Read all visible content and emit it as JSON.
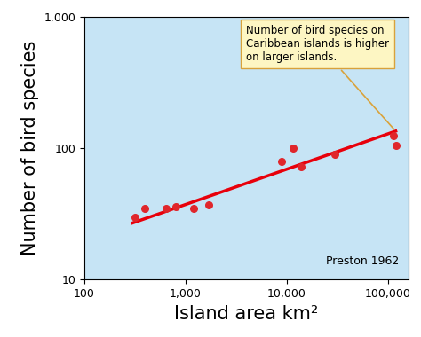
{
  "chart_data": {
    "type": "scatter",
    "x_label": "Island area km²",
    "y_label": "Number of bird species",
    "log": true,
    "grid": false,
    "xlim": [
      100,
      160000
    ],
    "ylim": [
      10,
      1000
    ],
    "xticks": [
      100,
      {
        "value": 1000,
        "label": "1,000"
      },
      {
        "value": 10000,
        "label": "10,000"
      },
      {
        "value": 100000,
        "label": "100,000"
      }
    ],
    "yticks": [
      10,
      100,
      {
        "value": 1000,
        "label": "1,000"
      }
    ],
    "series": [
      {
        "type": "scatter",
        "color": "#e0262b",
        "marker": "o",
        "x": [
          320,
          400,
          650,
          800,
          1200,
          1700,
          9000,
          11500,
          14000,
          30000,
          115000,
          120000
        ],
        "values": [
          30,
          35,
          35,
          36,
          35,
          37,
          80,
          100,
          72,
          90,
          125,
          105
        ]
      },
      {
        "type": "line",
        "color": "#e8000b",
        "line_style": "solid",
        "x": [
          300,
          120000
        ],
        "values": [
          27,
          135
        ]
      }
    ],
    "annotations": [
      {
        "text": "Number of bird species on\nCaribbean islands is higher\non larger islands.",
        "x": 120000,
        "y": 135
      },
      {
        "text": "Preston 1962"
      }
    ]
  }
}
